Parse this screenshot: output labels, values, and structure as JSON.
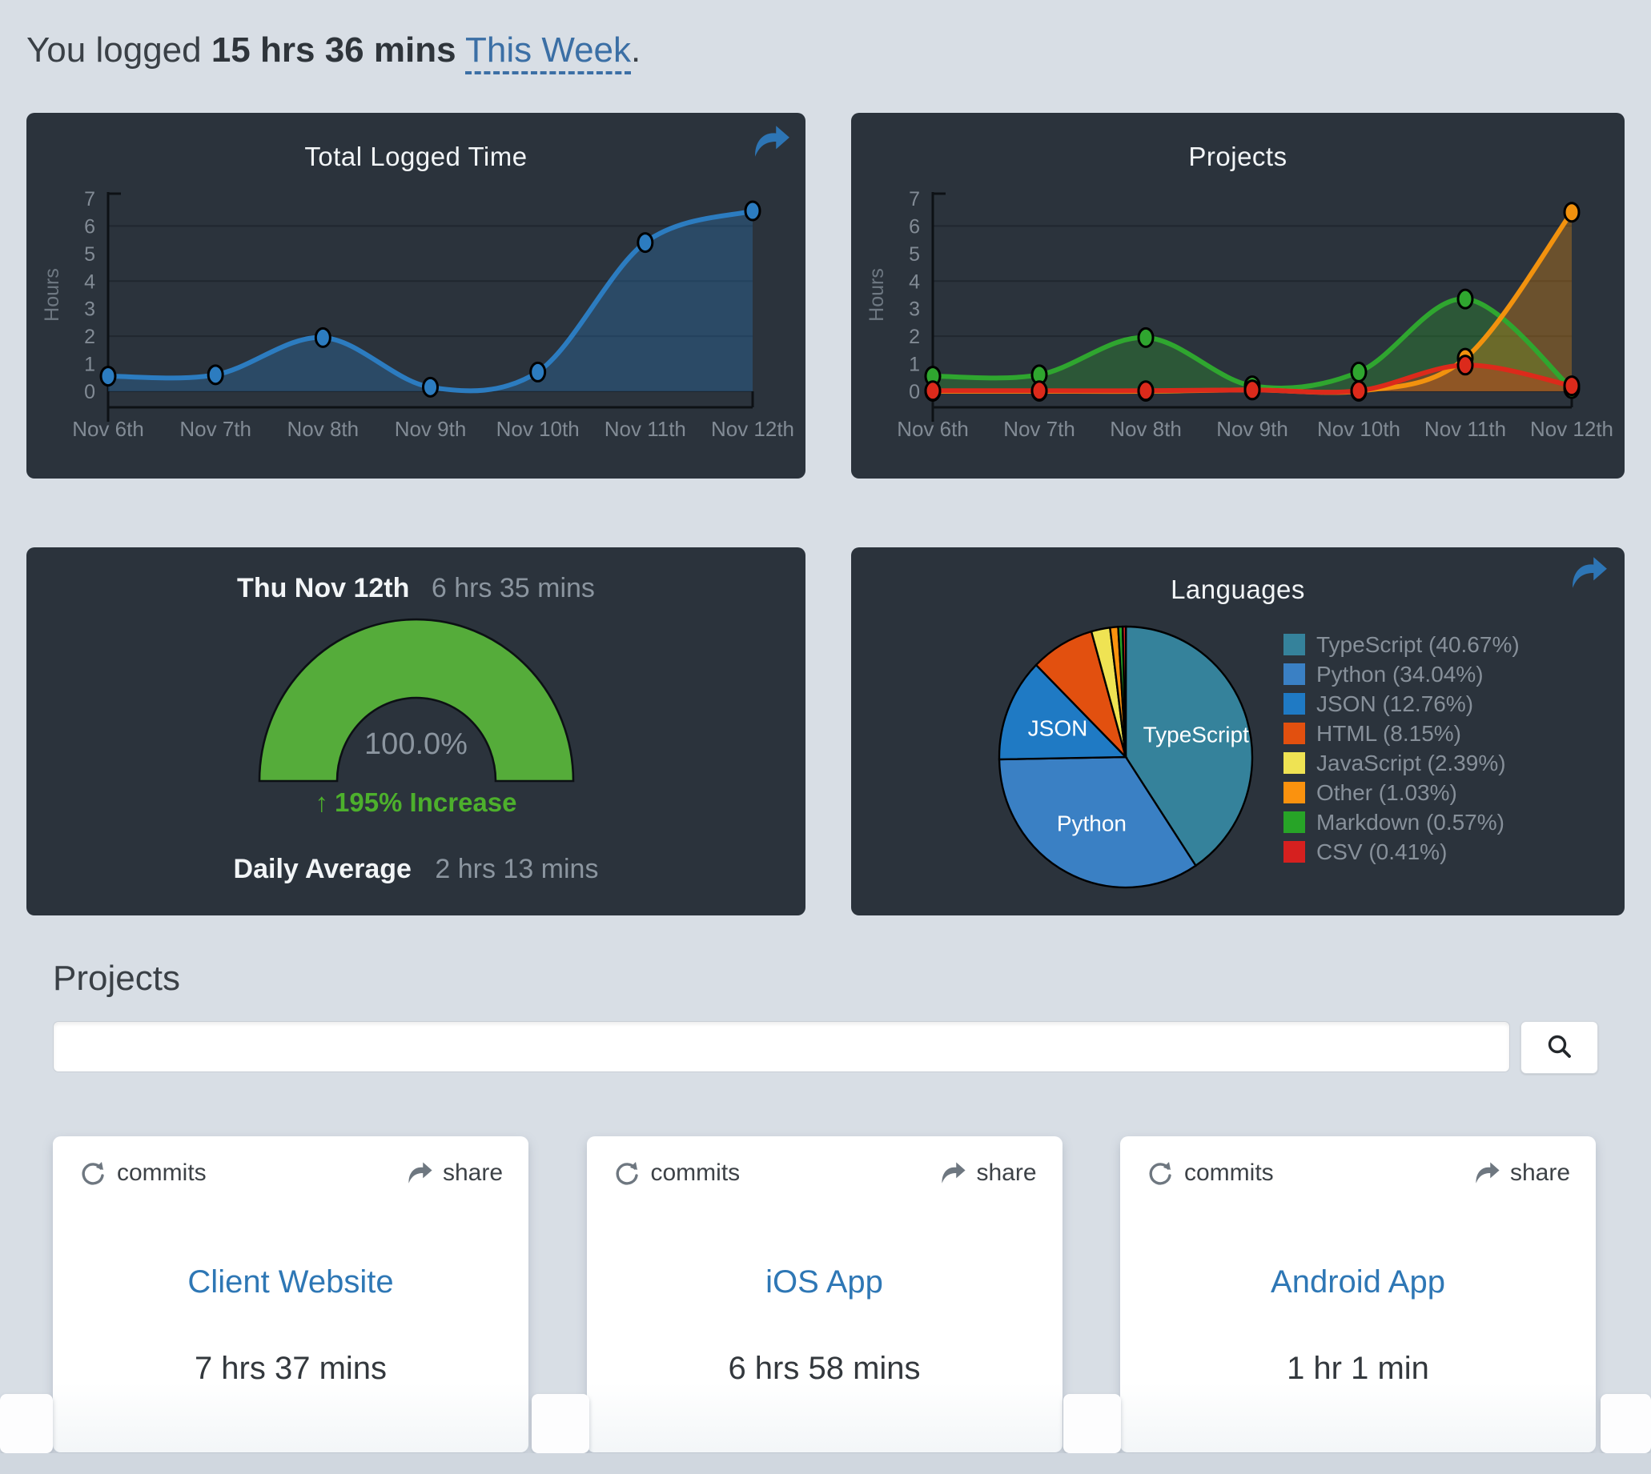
{
  "header": {
    "prefix": "You logged ",
    "total": "15 hrs 36 mins",
    "range_link": "This Week",
    "suffix": "."
  },
  "cards": {
    "total_logged": {
      "title": "Total Logged Time"
    },
    "projects_chart": {
      "title": "Projects"
    },
    "gauge": {
      "date": "Thu Nov 12th",
      "time": "6 hrs 35 mins",
      "percent": "100.0%",
      "increase_arrow": "↑",
      "increase": "195% Increase",
      "daily_avg_label": "Daily Average",
      "daily_avg_value": "2 hrs 13 mins"
    },
    "languages": {
      "title": "Languages"
    }
  },
  "chart_data": [
    {
      "type": "line",
      "title": "Total Logged Time",
      "ylabel": "Hours",
      "xlabel": "",
      "ylim": [
        0,
        7
      ],
      "yticks": [
        0,
        1,
        2,
        3,
        4,
        5,
        6,
        7
      ],
      "gridlines_at": [
        0,
        2,
        4,
        6
      ],
      "legend_position": "none",
      "categories": [
        "Nov 6th",
        "Nov 7th",
        "Nov 8th",
        "Nov 9th",
        "Nov 10th",
        "Nov 11th",
        "Nov 12th"
      ],
      "series": [
        {
          "name": "Total Logged Time",
          "color": "#2c7cc0",
          "fill_opacity": 0.32,
          "values": [
            0.55,
            0.6,
            1.95,
            0.15,
            0.7,
            5.4,
            6.55
          ]
        }
      ]
    },
    {
      "type": "line",
      "title": "Projects",
      "ylabel": "Hours",
      "xlabel": "",
      "ylim": [
        0,
        7
      ],
      "yticks": [
        0,
        1,
        2,
        3,
        4,
        5,
        6,
        7
      ],
      "gridlines_at": [
        0,
        2,
        4,
        6
      ],
      "legend_position": "none",
      "categories": [
        "Nov 6th",
        "Nov 7th",
        "Nov 8th",
        "Nov 9th",
        "Nov 10th",
        "Nov 11th",
        "Nov 12th"
      ],
      "series": [
        {
          "name": "green-series",
          "color": "#2fa62f",
          "fill_opacity": 0.32,
          "values": [
            0.55,
            0.6,
            1.95,
            0.2,
            0.7,
            3.35,
            0.1
          ]
        },
        {
          "name": "orange-series",
          "color": "#f2920e",
          "fill_opacity": 0.32,
          "values": [
            0.0,
            0.0,
            0.0,
            0.05,
            0.0,
            1.2,
            6.5
          ]
        },
        {
          "name": "red-series",
          "color": "#dc2a1b",
          "fill_opacity": 0.32,
          "values": [
            0.02,
            0.02,
            0.02,
            0.05,
            0.02,
            0.95,
            0.2
          ]
        }
      ]
    },
    {
      "type": "pie",
      "title": "Languages",
      "legend_position": "right",
      "slices": [
        {
          "label": "TypeScript",
          "pct": 40.67,
          "color": "#35829b"
        },
        {
          "label": "Python",
          "pct": 34.04,
          "color": "#3a80c4"
        },
        {
          "label": "JSON",
          "pct": 12.76,
          "color": "#1f7ac4"
        },
        {
          "label": "HTML",
          "pct": 8.15,
          "color": "#e2500f"
        },
        {
          "label": "JavaScript",
          "pct": 2.39,
          "color": "#efe353"
        },
        {
          "label": "Other",
          "pct": 1.03,
          "color": "#fb920e"
        },
        {
          "label": "Markdown",
          "pct": 0.57,
          "color": "#27a427"
        },
        {
          "label": "CSV",
          "pct": 0.41,
          "color": "#d6201f"
        }
      ]
    },
    {
      "type": "gauge",
      "title": "Thu Nov 12th",
      "subtitle": "6 hrs 35 mins",
      "value_pct": 100.0,
      "label": "100.0%",
      "color": "#55ac3a",
      "annotation": "195% Increase",
      "footer_label": "Daily Average",
      "footer_value": "2 hrs 13 mins"
    }
  ],
  "projects_section": {
    "title": "Projects",
    "search_value": "",
    "search_placeholder": ""
  },
  "project_cards": [
    {
      "commits_label": "commits",
      "share_label": "share",
      "name": "Client Website",
      "time": "7 hrs 37 mins"
    },
    {
      "commits_label": "commits",
      "share_label": "share",
      "name": "iOS App",
      "time": "6 hrs 58 mins"
    },
    {
      "commits_label": "commits",
      "share_label": "share",
      "name": "Android App",
      "time": "1 hr 1 min"
    }
  ],
  "colors": {
    "page_bg": "#d8dee5",
    "card_bg": "#2b333c",
    "accent_blue": "#2d75b5",
    "link_blue": "#3b6fa5",
    "gauge_green": "#55ac3a"
  }
}
